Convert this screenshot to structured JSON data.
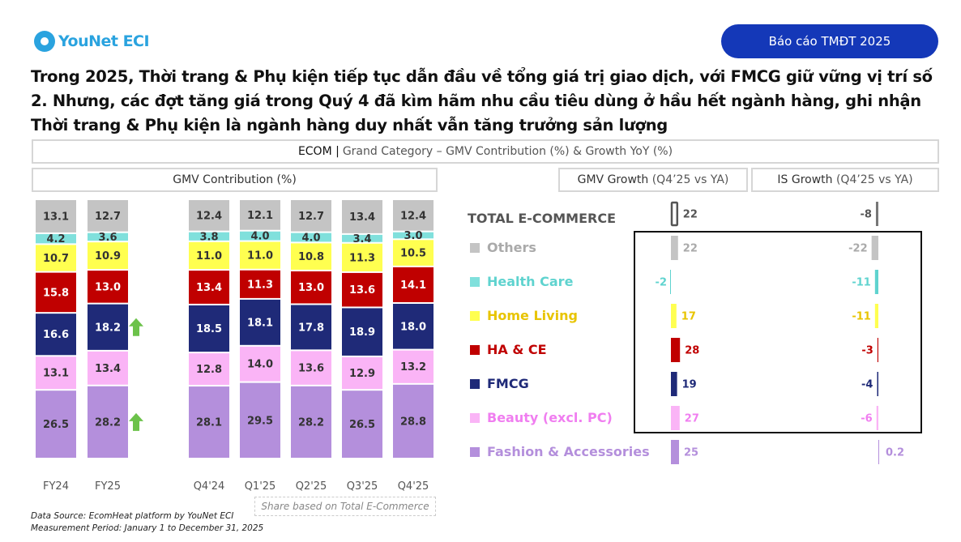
{
  "header": {
    "logo": "YouNet ECI",
    "badge": "Báo cáo TMĐT 2025"
  },
  "headline": "Trong 2025, Thời trang & Phụ kiện tiếp tục dẫn đầu về tổng giá trị giao dịch, với FMCG giữ vững vị trí số 2. Nhưng, các đợt tăng giá trong Quý 4 đã kìm hãm nhu cầu tiêu dùng ở hầu hết ngành hàng, ghi nhận Thời trang & Phụ kiện là ngành hàng duy nhất vẫn tăng trưởng sản lượng",
  "panel_title": {
    "bold": "ECOM |",
    "rest": "Grand Category – GMV Contribution (%) & Growth YoY (%)"
  },
  "section_headers": {
    "contribution": "GMV Contribution (%)",
    "gmv_growth": {
      "bold": "GMV Growth",
      "rest": "(Q4’25 vs YA)"
    },
    "is_growth": {
      "bold": "IS Growth",
      "rest": "(Q4’25 vs YA)"
    }
  },
  "note": "Share based on Total E-Commerce",
  "footer": {
    "source": "Data Source: EcomHeat platform by YouNet ECI",
    "period": "Measurement Period: January 1 to December 31, 2025"
  },
  "chart_data": [
    {
      "type": "bar",
      "stacked": true,
      "title": "GMV Contribution (%)",
      "categories": [
        "FY24",
        "FY25",
        "Q4'24",
        "Q1'25",
        "Q2'25",
        "Q3'25",
        "Q4'25"
      ],
      "series": [
        {
          "name": "Fashion & Accessories",
          "color": "#b48fdc",
          "values": [
            26.5,
            28.2,
            28.1,
            29.5,
            28.2,
            26.5,
            28.8
          ]
        },
        {
          "name": "Beauty (excl. PC)",
          "color": "#fab4f6",
          "values": [
            13.1,
            13.4,
            12.8,
            14.0,
            13.6,
            12.9,
            13.2
          ]
        },
        {
          "name": "FMCG",
          "color": "#1f2a78",
          "values": [
            16.6,
            18.2,
            18.5,
            18.1,
            17.8,
            18.9,
            18.0
          ]
        },
        {
          "name": "HA & CE",
          "color": "#c00000",
          "values": [
            15.8,
            13.0,
            13.4,
            11.3,
            13.0,
            13.6,
            14.1
          ]
        },
        {
          "name": "Home Living",
          "color": "#ffff50",
          "values": [
            10.7,
            10.9,
            11.0,
            11.0,
            10.8,
            11.3,
            10.5
          ]
        },
        {
          "name": "Health Care",
          "color": "#80e0dc",
          "values": [
            4.2,
            3.6,
            3.8,
            4.0,
            4.0,
            3.4,
            3.0
          ]
        },
        {
          "name": "Others",
          "color": "#c4c4c4",
          "values": [
            13.1,
            12.7,
            12.4,
            12.1,
            12.7,
            13.4,
            12.4
          ]
        }
      ],
      "annotations": [
        {
          "type": "up-arrow",
          "category": "FY25",
          "series": "FMCG",
          "color": "#6cc24a"
        },
        {
          "type": "up-arrow",
          "category": "FY25",
          "series": "Fashion & Accessories",
          "color": "#6cc24a"
        }
      ]
    },
    {
      "type": "bar",
      "orientation": "growth-table",
      "categories": [
        "TOTAL E-COMMERCE",
        "Others",
        "Health Care",
        "Home Living",
        "HA & CE",
        "FMCG",
        "Beauty (excl. PC)",
        "Fashion & Accessories"
      ],
      "label_colors": [
        "#555555",
        "#aaaaaa",
        "#5fd3cf",
        "#e8c400",
        "#c00000",
        "#1f2a78",
        "#f07ef0",
        "#b48fdc"
      ],
      "series": [
        {
          "name": "GMV Growth (Q4’25 vs YA)",
          "values": [
            22,
            22,
            -2,
            17,
            28,
            19,
            27,
            25
          ]
        },
        {
          "name": "IS Growth (Q4’25 vs YA)",
          "values": [
            -8,
            -22,
            -11,
            -11,
            -3,
            -4,
            -6,
            0.2
          ]
        }
      ]
    }
  ]
}
